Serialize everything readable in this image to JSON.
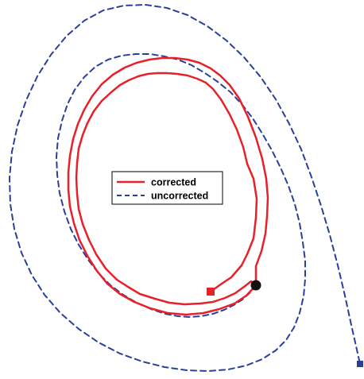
{
  "chart_data": {
    "type": "line",
    "title": "",
    "xlabel": "",
    "ylabel": "",
    "grid": false,
    "legend_placement": "center",
    "series": [
      {
        "name": "corrected",
        "color": "#e8202a",
        "line_style": "solid",
        "start_marker": "square",
        "end_marker": "circle",
        "points": [
          [
            265,
            367
          ],
          [
            279,
            357
          ],
          [
            291,
            349
          ],
          [
            304,
            334
          ],
          [
            311,
            320
          ],
          [
            319,
            300
          ],
          [
            322,
            274
          ],
          [
            323,
            250
          ],
          [
            319,
            225
          ],
          [
            311,
            206
          ],
          [
            306,
            185
          ],
          [
            298,
            163
          ],
          [
            289,
            144
          ],
          [
            278,
            125
          ],
          [
            268,
            112
          ],
          [
            259,
            104
          ],
          [
            248,
            99
          ],
          [
            236,
            95
          ],
          [
            223,
            93
          ],
          [
            210,
            92
          ],
          [
            198,
            92
          ],
          [
            186,
            93
          ],
          [
            174,
            96
          ],
          [
            162,
            101
          ],
          [
            151,
            107
          ],
          [
            140,
            116
          ],
          [
            128,
            127
          ],
          [
            118,
            140
          ],
          [
            110,
            155
          ],
          [
            104,
            170
          ],
          [
            99,
            187
          ],
          [
            97,
            205
          ],
          [
            96,
            224
          ],
          [
            97,
            244
          ],
          [
            99,
            263
          ],
          [
            104,
            282
          ],
          [
            112,
            302
          ],
          [
            121,
            320
          ],
          [
            133,
            338
          ],
          [
            147,
            352
          ],
          [
            161,
            361
          ],
          [
            176,
            370
          ],
          [
            195,
            376
          ],
          [
            213,
            381
          ],
          [
            232,
            383
          ],
          [
            252,
            382
          ],
          [
            268,
            380
          ],
          [
            283,
            375
          ],
          [
            296,
            369
          ],
          [
            307,
            361
          ],
          [
            316,
            354
          ],
          [
            322,
            359
          ],
          [
            310,
            372
          ],
          [
            295,
            382
          ],
          [
            276,
            389
          ],
          [
            256,
            394
          ],
          [
            234,
            396
          ],
          [
            211,
            394
          ],
          [
            189,
            388
          ],
          [
            169,
            380
          ],
          [
            151,
            370
          ],
          [
            135,
            357
          ],
          [
            122,
            341
          ],
          [
            110,
            322
          ],
          [
            100,
            302
          ],
          [
            93,
            281
          ],
          [
            88,
            260
          ],
          [
            86,
            239
          ],
          [
            86,
            217
          ],
          [
            88,
            196
          ],
          [
            92,
            175
          ],
          [
            98,
            156
          ],
          [
            106,
            138
          ],
          [
            116,
            121
          ],
          [
            128,
            106
          ],
          [
            142,
            94
          ],
          [
            157,
            85
          ],
          [
            172,
            79
          ],
          [
            188,
            75
          ],
          [
            204,
            73
          ],
          [
            220,
            73
          ],
          [
            236,
            75
          ],
          [
            251,
            79
          ],
          [
            265,
            86
          ],
          [
            277,
            95
          ],
          [
            289,
            107
          ],
          [
            301,
            124
          ],
          [
            312,
            147
          ],
          [
            322,
            173
          ],
          [
            330,
            200
          ],
          [
            335,
            225
          ],
          [
            337,
            249
          ],
          [
            336,
            272
          ],
          [
            334,
            294
          ],
          [
            329,
            316
          ],
          [
            322,
            335
          ],
          [
            322,
            359
          ]
        ]
      },
      {
        "name": "uncorrected",
        "color": "#2a3f9c",
        "line_style": "dashed",
        "end_marker": "square",
        "points": [
          [
            322,
            359
          ],
          [
            316,
            367
          ],
          [
            305,
            377
          ],
          [
            294,
            384
          ],
          [
            282,
            390
          ],
          [
            268,
            395
          ],
          [
            253,
            398
          ],
          [
            238,
            399
          ],
          [
            224,
            398
          ],
          [
            208,
            395
          ],
          [
            190,
            389
          ],
          [
            172,
            381
          ],
          [
            155,
            371
          ],
          [
            139,
            359
          ],
          [
            124,
            344
          ],
          [
            111,
            327
          ],
          [
            99,
            308
          ],
          [
            89,
            288
          ],
          [
            81,
            266
          ],
          [
            75,
            243
          ],
          [
            72,
            220
          ],
          [
            71,
            197
          ],
          [
            73,
            174
          ],
          [
            78,
            152
          ],
          [
            85,
            131
          ],
          [
            94,
            113
          ],
          [
            106,
            97
          ],
          [
            120,
            84
          ],
          [
            136,
            75
          ],
          [
            153,
            70
          ],
          [
            171,
            68
          ],
          [
            189,
            68
          ],
          [
            207,
            71
          ],
          [
            224,
            75
          ],
          [
            241,
            82
          ],
          [
            258,
            92
          ],
          [
            274,
            103
          ],
          [
            290,
            116
          ],
          [
            305,
            132
          ],
          [
            318,
            149
          ],
          [
            330,
            168
          ],
          [
            342,
            189
          ],
          [
            353,
            211
          ],
          [
            363,
            234
          ],
          [
            371,
            257
          ],
          [
            377,
            281
          ],
          [
            381,
            305
          ],
          [
            384,
            328
          ],
          [
            384,
            351
          ],
          [
            382,
            373
          ],
          [
            377,
            394
          ],
          [
            370,
            412
          ],
          [
            360,
            428
          ],
          [
            347,
            441
          ],
          [
            330,
            452
          ],
          [
            310,
            460
          ],
          [
            287,
            465
          ],
          [
            262,
            467
          ],
          [
            235,
            466
          ],
          [
            207,
            462
          ],
          [
            179,
            455
          ],
          [
            151,
            445
          ],
          [
            124,
            431
          ],
          [
            99,
            414
          ],
          [
            76,
            394
          ],
          [
            56,
            371
          ],
          [
            40,
            346
          ],
          [
            27,
            318
          ],
          [
            18,
            288
          ],
          [
            13,
            257
          ],
          [
            12,
            224
          ],
          [
            15,
            191
          ],
          [
            22,
            158
          ],
          [
            33,
            126
          ],
          [
            47,
            96
          ],
          [
            64,
            69
          ],
          [
            84,
            45
          ],
          [
            106,
            26
          ],
          [
            130,
            13
          ],
          [
            156,
            7
          ],
          [
            183,
            6
          ],
          [
            210,
            10
          ],
          [
            236,
            19
          ],
          [
            261,
            33
          ],
          [
            285,
            51
          ],
          [
            307,
            72
          ],
          [
            328,
            97
          ],
          [
            347,
            125
          ],
          [
            364,
            156
          ],
          [
            379,
            188
          ],
          [
            392,
            223
          ],
          [
            404,
            259
          ],
          [
            415,
            296
          ],
          [
            425,
            334
          ],
          [
            434,
            372
          ],
          [
            442,
            409
          ],
          [
            449,
            440
          ],
          [
            453,
            458
          ]
        ]
      }
    ]
  }
}
